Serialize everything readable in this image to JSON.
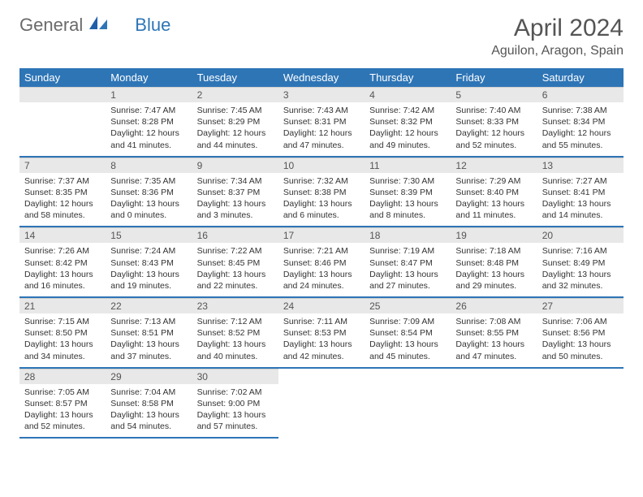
{
  "logo": {
    "general": "General",
    "blue": "Blue"
  },
  "title": "April 2024",
  "location": "Aguilon, Aragon, Spain",
  "colors": {
    "header_bg": "#2e75b6",
    "header_text": "#ffffff",
    "daynum_bg": "#e8e8e8",
    "row_divider": "#2e75b6",
    "logo_gray": "#6a6a6a",
    "logo_blue": "#2e75b6"
  },
  "weekdays": [
    "Sunday",
    "Monday",
    "Tuesday",
    "Wednesday",
    "Thursday",
    "Friday",
    "Saturday"
  ],
  "first_weekday_index": 1,
  "days": [
    {
      "n": 1,
      "sunrise": "7:47 AM",
      "sunset": "8:28 PM",
      "daylight": "12 hours and 41 minutes."
    },
    {
      "n": 2,
      "sunrise": "7:45 AM",
      "sunset": "8:29 PM",
      "daylight": "12 hours and 44 minutes."
    },
    {
      "n": 3,
      "sunrise": "7:43 AM",
      "sunset": "8:31 PM",
      "daylight": "12 hours and 47 minutes."
    },
    {
      "n": 4,
      "sunrise": "7:42 AM",
      "sunset": "8:32 PM",
      "daylight": "12 hours and 49 minutes."
    },
    {
      "n": 5,
      "sunrise": "7:40 AM",
      "sunset": "8:33 PM",
      "daylight": "12 hours and 52 minutes."
    },
    {
      "n": 6,
      "sunrise": "7:38 AM",
      "sunset": "8:34 PM",
      "daylight": "12 hours and 55 minutes."
    },
    {
      "n": 7,
      "sunrise": "7:37 AM",
      "sunset": "8:35 PM",
      "daylight": "12 hours and 58 minutes."
    },
    {
      "n": 8,
      "sunrise": "7:35 AM",
      "sunset": "8:36 PM",
      "daylight": "13 hours and 0 minutes."
    },
    {
      "n": 9,
      "sunrise": "7:34 AM",
      "sunset": "8:37 PM",
      "daylight": "13 hours and 3 minutes."
    },
    {
      "n": 10,
      "sunrise": "7:32 AM",
      "sunset": "8:38 PM",
      "daylight": "13 hours and 6 minutes."
    },
    {
      "n": 11,
      "sunrise": "7:30 AM",
      "sunset": "8:39 PM",
      "daylight": "13 hours and 8 minutes."
    },
    {
      "n": 12,
      "sunrise": "7:29 AM",
      "sunset": "8:40 PM",
      "daylight": "13 hours and 11 minutes."
    },
    {
      "n": 13,
      "sunrise": "7:27 AM",
      "sunset": "8:41 PM",
      "daylight": "13 hours and 14 minutes."
    },
    {
      "n": 14,
      "sunrise": "7:26 AM",
      "sunset": "8:42 PM",
      "daylight": "13 hours and 16 minutes."
    },
    {
      "n": 15,
      "sunrise": "7:24 AM",
      "sunset": "8:43 PM",
      "daylight": "13 hours and 19 minutes."
    },
    {
      "n": 16,
      "sunrise": "7:22 AM",
      "sunset": "8:45 PM",
      "daylight": "13 hours and 22 minutes."
    },
    {
      "n": 17,
      "sunrise": "7:21 AM",
      "sunset": "8:46 PM",
      "daylight": "13 hours and 24 minutes."
    },
    {
      "n": 18,
      "sunrise": "7:19 AM",
      "sunset": "8:47 PM",
      "daylight": "13 hours and 27 minutes."
    },
    {
      "n": 19,
      "sunrise": "7:18 AM",
      "sunset": "8:48 PM",
      "daylight": "13 hours and 29 minutes."
    },
    {
      "n": 20,
      "sunrise": "7:16 AM",
      "sunset": "8:49 PM",
      "daylight": "13 hours and 32 minutes."
    },
    {
      "n": 21,
      "sunrise": "7:15 AM",
      "sunset": "8:50 PM",
      "daylight": "13 hours and 34 minutes."
    },
    {
      "n": 22,
      "sunrise": "7:13 AM",
      "sunset": "8:51 PM",
      "daylight": "13 hours and 37 minutes."
    },
    {
      "n": 23,
      "sunrise": "7:12 AM",
      "sunset": "8:52 PM",
      "daylight": "13 hours and 40 minutes."
    },
    {
      "n": 24,
      "sunrise": "7:11 AM",
      "sunset": "8:53 PM",
      "daylight": "13 hours and 42 minutes."
    },
    {
      "n": 25,
      "sunrise": "7:09 AM",
      "sunset": "8:54 PM",
      "daylight": "13 hours and 45 minutes."
    },
    {
      "n": 26,
      "sunrise": "7:08 AM",
      "sunset": "8:55 PM",
      "daylight": "13 hours and 47 minutes."
    },
    {
      "n": 27,
      "sunrise": "7:06 AM",
      "sunset": "8:56 PM",
      "daylight": "13 hours and 50 minutes."
    },
    {
      "n": 28,
      "sunrise": "7:05 AM",
      "sunset": "8:57 PM",
      "daylight": "13 hours and 52 minutes."
    },
    {
      "n": 29,
      "sunrise": "7:04 AM",
      "sunset": "8:58 PM",
      "daylight": "13 hours and 54 minutes."
    },
    {
      "n": 30,
      "sunrise": "7:02 AM",
      "sunset": "9:00 PM",
      "daylight": "13 hours and 57 minutes."
    }
  ],
  "labels": {
    "sunrise_prefix": "Sunrise: ",
    "sunset_prefix": "Sunset: ",
    "daylight_prefix": "Daylight: "
  }
}
